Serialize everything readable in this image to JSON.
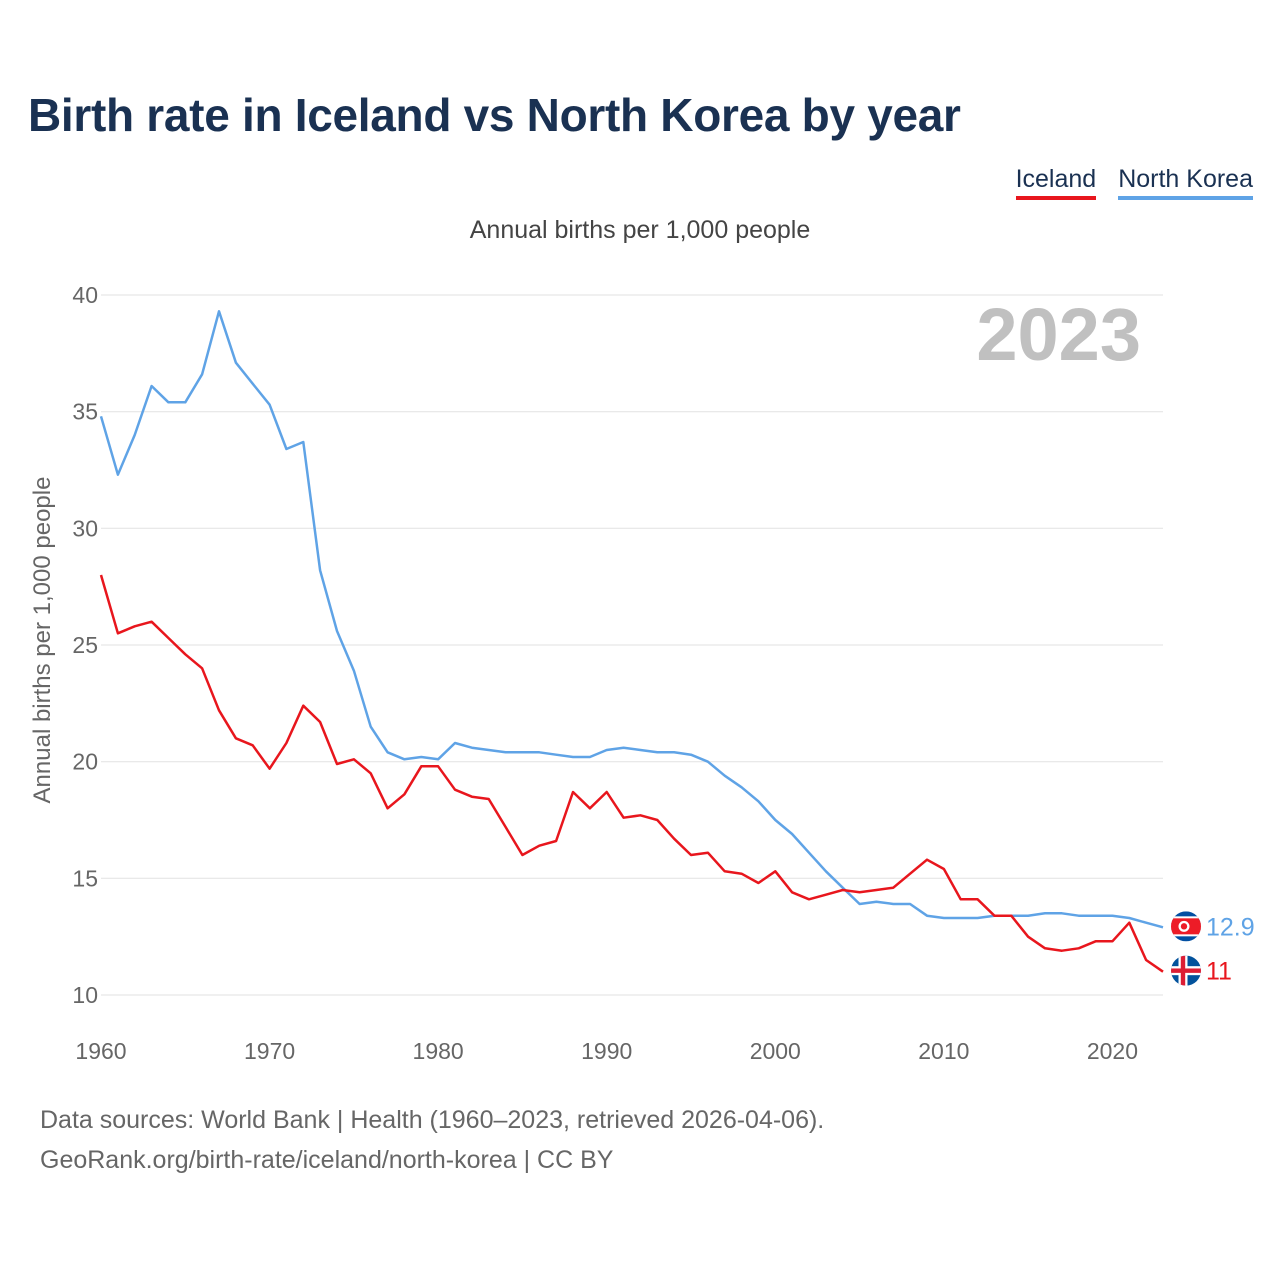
{
  "title": "Birth rate in Iceland vs North Korea by year",
  "subtitle": "Annual births per 1,000 people",
  "legend": [
    {
      "name": "Iceland",
      "color": "#e8161d"
    },
    {
      "name": "North Korea",
      "color": "#5fa3e6"
    }
  ],
  "year_watermark": "2023",
  "source_line1": "Data sources: World Bank | Health (1960–2023, retrieved 2026-04-06).",
  "source_line2": "GeoRank.org/birth-rate/iceland/north-korea | CC BY",
  "chart_data": {
    "type": "line",
    "title": "Birth rate in Iceland vs North Korea by year",
    "ylabel": "Annual births per 1,000 people",
    "xlabel": "",
    "xlim": [
      1960,
      2023
    ],
    "ylim": [
      10,
      40
    ],
    "xticks": [
      1960,
      1970,
      1980,
      1990,
      2000,
      2010,
      2020
    ],
    "yticks": [
      10,
      15,
      20,
      25,
      30,
      35,
      40
    ],
    "grid": true,
    "legend_position": "top-right",
    "x": [
      1960,
      1961,
      1962,
      1963,
      1964,
      1965,
      1966,
      1967,
      1968,
      1969,
      1970,
      1971,
      1972,
      1973,
      1974,
      1975,
      1976,
      1977,
      1978,
      1979,
      1980,
      1981,
      1982,
      1983,
      1984,
      1985,
      1986,
      1987,
      1988,
      1989,
      1990,
      1991,
      1992,
      1993,
      1994,
      1995,
      1996,
      1997,
      1998,
      1999,
      2000,
      2001,
      2002,
      2003,
      2004,
      2005,
      2006,
      2007,
      2008,
      2009,
      2010,
      2011,
      2012,
      2013,
      2014,
      2015,
      2016,
      2017,
      2018,
      2019,
      2020,
      2021,
      2022,
      2023
    ],
    "series": [
      {
        "name": "Iceland",
        "color": "#e8161d",
        "end_label": "11",
        "values": [
          28.0,
          25.5,
          25.8,
          26.0,
          25.3,
          24.6,
          24.0,
          22.2,
          21.0,
          20.7,
          19.7,
          20.8,
          22.4,
          21.7,
          19.9,
          20.1,
          19.5,
          18.0,
          18.6,
          19.8,
          19.8,
          18.8,
          18.5,
          18.4,
          17.2,
          16.0,
          16.4,
          16.6,
          18.7,
          18.0,
          18.7,
          17.6,
          17.7,
          17.5,
          16.7,
          16.0,
          16.1,
          15.3,
          15.2,
          14.8,
          15.3,
          14.4,
          14.1,
          14.3,
          14.5,
          14.4,
          14.5,
          14.6,
          15.2,
          15.8,
          15.4,
          14.1,
          14.1,
          13.4,
          13.4,
          12.5,
          12.0,
          11.9,
          12.0,
          12.3,
          12.3,
          13.1,
          11.5,
          11.0
        ]
      },
      {
        "name": "North Korea",
        "color": "#5fa3e6",
        "end_label": "12.9",
        "values": [
          34.8,
          32.3,
          34.0,
          36.1,
          35.4,
          35.4,
          36.6,
          39.3,
          37.1,
          36.2,
          35.3,
          33.4,
          33.7,
          28.2,
          25.6,
          23.9,
          21.5,
          20.4,
          20.1,
          20.2,
          20.1,
          20.8,
          20.6,
          20.5,
          20.4,
          20.4,
          20.4,
          20.3,
          20.2,
          20.2,
          20.5,
          20.6,
          20.5,
          20.4,
          20.4,
          20.3,
          20.0,
          19.4,
          18.9,
          18.3,
          17.5,
          16.9,
          16.1,
          15.3,
          14.6,
          13.9,
          14.0,
          13.9,
          13.9,
          13.4,
          13.3,
          13.3,
          13.3,
          13.4,
          13.4,
          13.4,
          13.5,
          13.5,
          13.4,
          13.4,
          13.4,
          13.3,
          13.1,
          12.9
        ]
      }
    ]
  }
}
